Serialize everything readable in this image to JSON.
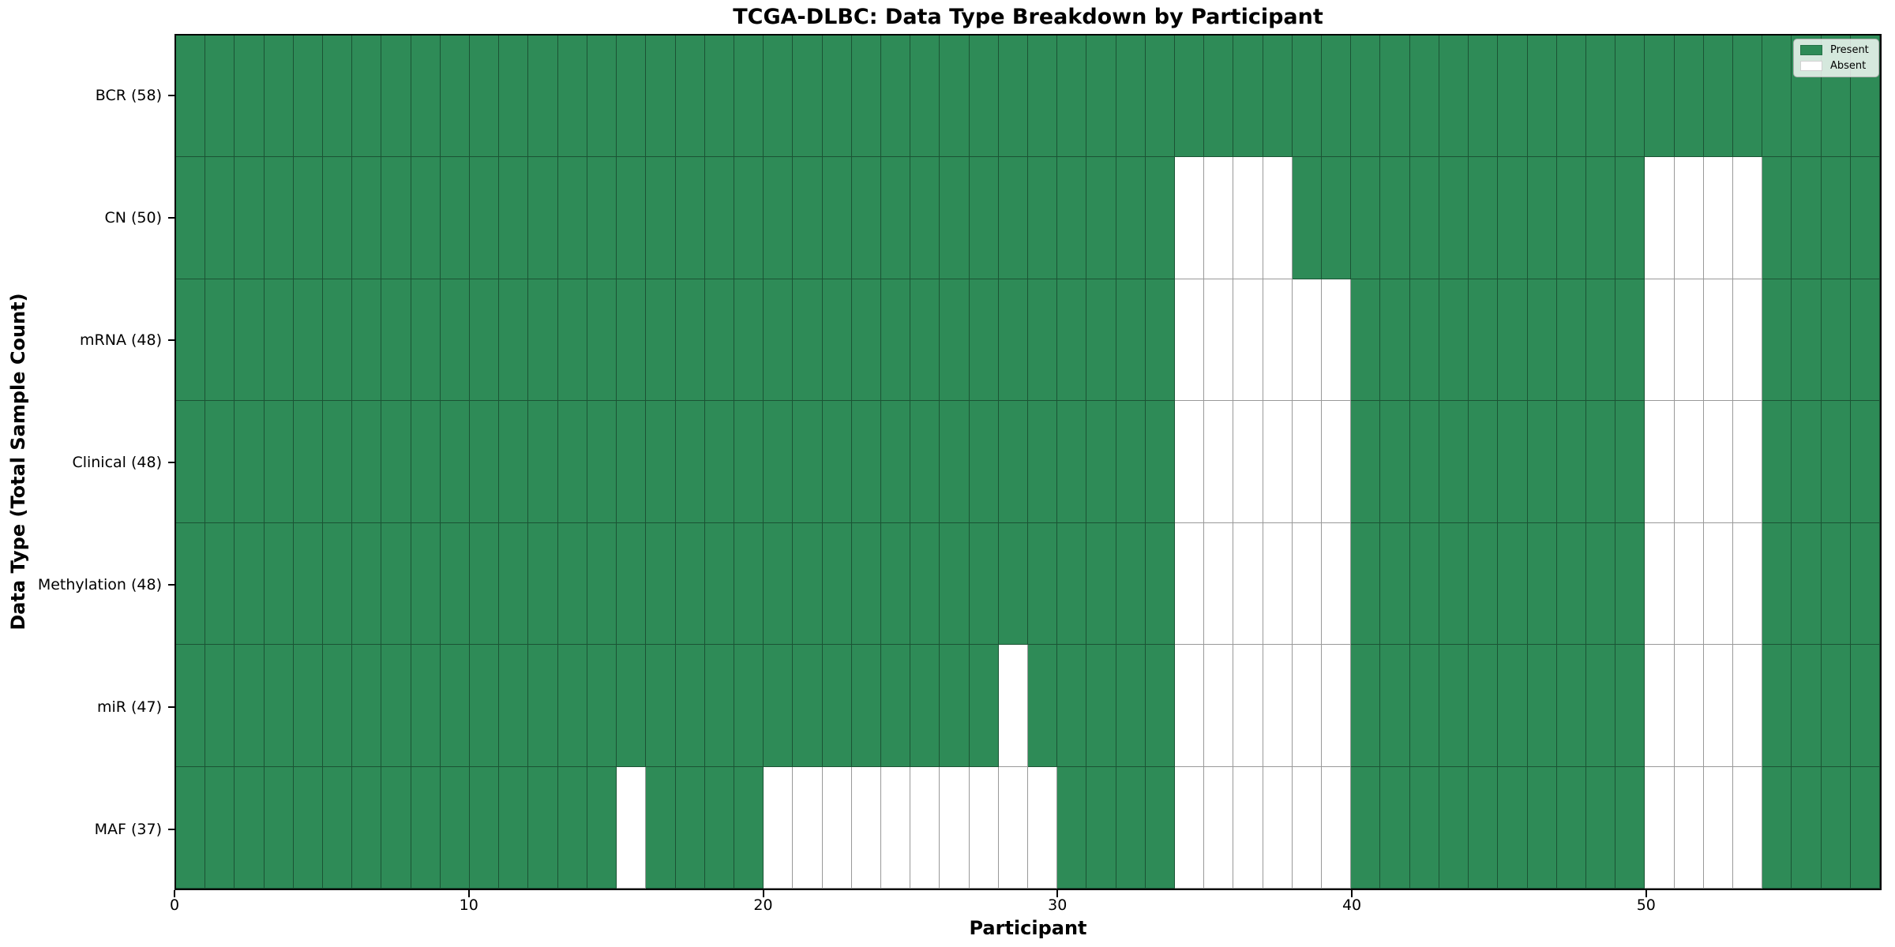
{
  "figure": {
    "title": "TCGA-DLBC: Data Type Breakdown by Participant",
    "x_axis_label": "Participant",
    "y_axis_label": "Data Type (Total Sample Count)"
  },
  "legend": {
    "present_label": "Present",
    "absent_label": "Absent"
  },
  "chart_data": {
    "type": "heatmap",
    "title": "TCGA-DLBC: Data Type Breakdown by Participant",
    "xlabel": "Participant",
    "ylabel": "Data Type (Total Sample Count)",
    "n_participants": 58,
    "x_ticks": [
      0,
      10,
      20,
      30,
      40,
      50
    ],
    "legend_position": "upper right",
    "legend_entries": [
      {
        "label": "Present",
        "value": 1
      },
      {
        "label": "Absent",
        "value": 0
      }
    ],
    "colors": {
      "present": "#2e8b57",
      "absent": "#ffffff",
      "cell_edge": "rgba(0,0,0,0.4)",
      "spine": "#000000",
      "legend_bg": "rgba(255,255,255,0.8)",
      "legend_border": "#b0b0b0"
    },
    "rows": [
      {
        "label": "BCR (58)",
        "data_type": "BCR",
        "total_samples": 58,
        "absent_participants": []
      },
      {
        "label": "CN (50)",
        "data_type": "CN",
        "total_samples": 50,
        "absent_participants": [
          34,
          35,
          36,
          37,
          50,
          51,
          52,
          53
        ]
      },
      {
        "label": "mRNA (48)",
        "data_type": "mRNA",
        "total_samples": 48,
        "absent_participants": [
          34,
          35,
          36,
          37,
          38,
          39,
          50,
          51,
          52,
          53
        ]
      },
      {
        "label": "Clinical (48)",
        "data_type": "Clinical",
        "total_samples": 48,
        "absent_participants": [
          34,
          35,
          36,
          37,
          38,
          39,
          50,
          51,
          52,
          53
        ]
      },
      {
        "label": "Methylation (48)",
        "data_type": "Methylation",
        "total_samples": 48,
        "absent_participants": [
          34,
          35,
          36,
          37,
          38,
          39,
          50,
          51,
          52,
          53
        ]
      },
      {
        "label": "miR (47)",
        "data_type": "miR",
        "total_samples": 47,
        "absent_participants": [
          28,
          34,
          35,
          36,
          37,
          38,
          39,
          50,
          51,
          52,
          53
        ]
      },
      {
        "label": "MAF (37)",
        "data_type": "MAF",
        "total_samples": 37,
        "absent_participants": [
          15,
          20,
          21,
          22,
          23,
          24,
          25,
          26,
          27,
          28,
          29,
          34,
          35,
          36,
          37,
          38,
          39,
          50,
          51,
          52,
          53
        ]
      }
    ]
  }
}
